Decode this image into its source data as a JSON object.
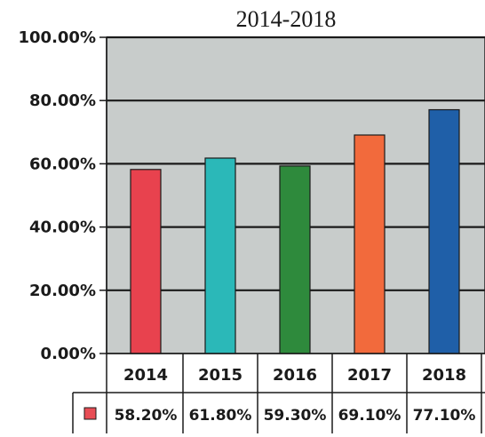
{
  "chart_data": {
    "type": "bar",
    "title": "2014-2018",
    "xlabel": "",
    "ylabel": "",
    "categories": [
      "2014",
      "2015",
      "2016",
      "2017",
      "2018"
    ],
    "series": [
      {
        "values": [
          58.2,
          61.8,
          59.3,
          69.1,
          77.1
        ],
        "value_labels": [
          "58.20%",
          "61.80%",
          "59.30%",
          "69.10%",
          "77.10%"
        ],
        "bar_colors": [
          "#e8424e",
          "#2bb8b8",
          "#2e8a3c",
          "#f26a3c",
          "#1f5fa8"
        ],
        "legend_color": "#e84d55"
      }
    ],
    "ylim": [
      0,
      100
    ],
    "yticks": [
      0,
      20,
      40,
      60,
      80,
      100
    ],
    "ytick_labels": [
      "0.00%",
      "20.00%",
      "40.00%",
      "60.00%",
      "80.00%",
      "100.00%"
    ],
    "grid": true,
    "data_table": true,
    "plot_background": "#c8cccb"
  }
}
